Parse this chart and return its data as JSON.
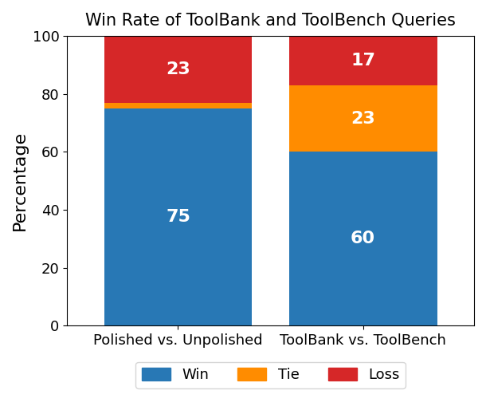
{
  "title": "Win Rate of ToolBank and ToolBench Queries",
  "categories": [
    "Polished vs. Unpolished",
    "ToolBank vs. ToolBench"
  ],
  "win": [
    75,
    60
  ],
  "tie": [
    2,
    23
  ],
  "loss": [
    23,
    17
  ],
  "win_color": "#2878b5",
  "tie_color": "#ff8c00",
  "loss_color": "#d62728",
  "ylabel": "Percentage",
  "ylim": [
    0,
    100
  ],
  "yticks": [
    0,
    20,
    40,
    60,
    80,
    100
  ],
  "label_fontsize": 16,
  "title_fontsize": 15,
  "tick_fontsize": 13,
  "bar_width": 0.8,
  "legend_labels": [
    "Win",
    "Tie",
    "Loss"
  ],
  "figsize": [
    6.1,
    5.04
  ],
  "dpi": 100
}
